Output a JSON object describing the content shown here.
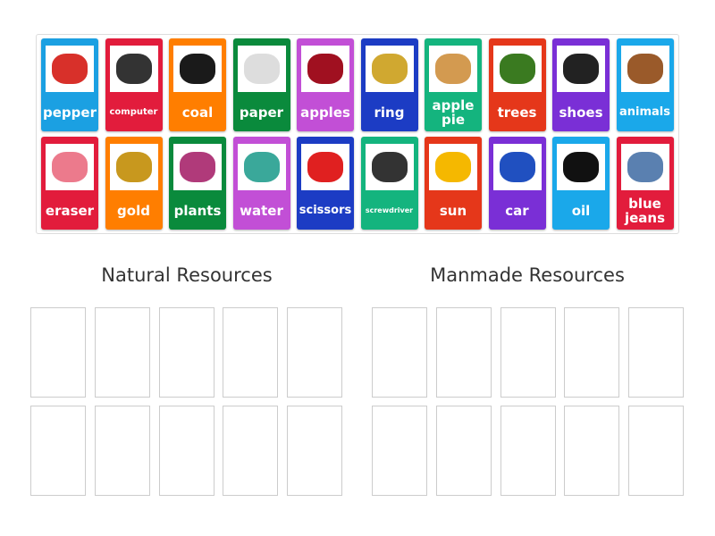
{
  "cards": [
    {
      "label": "pepper",
      "color": "#1ba0e2",
      "img": "#d8302a",
      "icon": "pepper-image"
    },
    {
      "label": "computer",
      "color": "#e21c3c",
      "img": "#333333",
      "icon": "computer-image",
      "size": "small"
    },
    {
      "label": "coal",
      "color": "#ff7e00",
      "img": "#1a1a1a",
      "icon": "coal-image"
    },
    {
      "label": "paper",
      "color": "#0a8a3c",
      "img": "#dddddd",
      "icon": "paper-image"
    },
    {
      "label": "apples",
      "color": "#c24fd6",
      "img": "#a01020",
      "icon": "apples-image"
    },
    {
      "label": "ring",
      "color": "#1c3cc4",
      "img": "#d0a830",
      "icon": "ring-image"
    },
    {
      "label": "apple pie",
      "color": "#14b47e",
      "img": "#d39a50",
      "icon": "apple-pie-image"
    },
    {
      "label": "trees",
      "color": "#e5371a",
      "img": "#3a7a20",
      "icon": "tree-image"
    },
    {
      "label": "shoes",
      "color": "#7a2fd6",
      "img": "#222222",
      "icon": "shoes-image"
    },
    {
      "label": "animals",
      "color": "#1aa8ea",
      "img": "#9a5a2a",
      "icon": "animals-image",
      "size": "small2"
    },
    {
      "label": "eraser",
      "color": "#e21c3c",
      "img": "#ec7a8c",
      "icon": "eraser-image"
    },
    {
      "label": "gold",
      "color": "#ff7e00",
      "img": "#c8981e",
      "icon": "gold-image"
    },
    {
      "label": "plants",
      "color": "#0a8a3c",
      "img": "#b03a7a",
      "icon": "plants-image"
    },
    {
      "label": "water",
      "color": "#c24fd6",
      "img": "#3aa89a",
      "icon": "water-image"
    },
    {
      "label": "scissors",
      "color": "#1c3cc4",
      "img": "#e02020",
      "icon": "scissors-image",
      "size": "small2"
    },
    {
      "label": "screwdriver",
      "color": "#14b47e",
      "img": "#333333",
      "icon": "screwdriver-image",
      "size": "tiny"
    },
    {
      "label": "sun",
      "color": "#e5371a",
      "img": "#f5b800",
      "icon": "sun-image"
    },
    {
      "label": "car",
      "color": "#7a2fd6",
      "img": "#2050c0",
      "icon": "car-image"
    },
    {
      "label": "oil",
      "color": "#1aa8ea",
      "img": "#111111",
      "icon": "oil-barrels-image"
    },
    {
      "label": "blue jeans",
      "color": "#e21c3c",
      "img": "#5a80b0",
      "icon": "jeans-image"
    }
  ],
  "groups": [
    {
      "title": "Natural Resources"
    },
    {
      "title": "Manmade Resources"
    }
  ]
}
